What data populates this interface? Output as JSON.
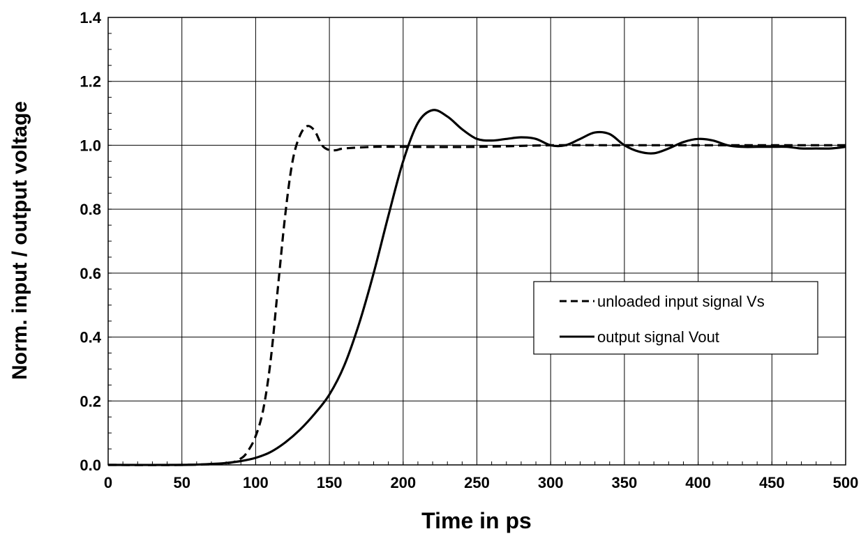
{
  "chart_data": {
    "type": "line",
    "xlabel": "Time in ps",
    "ylabel": "Norm. input / output voltage",
    "xlim": [
      0,
      500
    ],
    "ylim": [
      0,
      1.4
    ],
    "x_ticks": [
      0,
      50,
      100,
      150,
      200,
      250,
      300,
      350,
      400,
      450,
      500
    ],
    "y_ticks": [
      0.0,
      0.2,
      0.4,
      0.6,
      0.8,
      1.0,
      1.2,
      1.4
    ],
    "x_tick_labels": [
      "0",
      "50",
      "100",
      "150",
      "200",
      "250",
      "300",
      "350",
      "400",
      "450",
      "500"
    ],
    "y_tick_labels": [
      "0.0",
      "0.2",
      "0.4",
      "0.6",
      "0.8",
      "1.0",
      "1.2",
      "1.4"
    ],
    "grid": true,
    "legend_position": "right",
    "series": [
      {
        "name": "unloaded input signal Vs",
        "style": "dashed",
        "color": "#000000",
        "x": [
          0,
          50,
          80,
          90,
          95,
          100,
          105,
          110,
          115,
          120,
          125,
          130,
          135,
          140,
          145,
          150,
          155,
          160,
          180,
          200,
          250,
          300,
          350,
          400,
          450,
          500
        ],
        "y": [
          0.0,
          0.0,
          0.005,
          0.02,
          0.045,
          0.09,
          0.17,
          0.32,
          0.55,
          0.78,
          0.95,
          1.03,
          1.06,
          1.045,
          1.0,
          0.985,
          0.985,
          0.99,
          0.995,
          0.995,
          0.995,
          1.0,
          1.0,
          1.0,
          1.0,
          1.0
        ]
      },
      {
        "name": "output signal Vout",
        "style": "solid",
        "color": "#000000",
        "x": [
          0,
          50,
          70,
          80,
          90,
          100,
          110,
          120,
          130,
          140,
          150,
          160,
          170,
          180,
          190,
          200,
          210,
          220,
          230,
          240,
          250,
          260,
          270,
          280,
          290,
          300,
          310,
          320,
          330,
          340,
          350,
          360,
          370,
          380,
          390,
          400,
          410,
          420,
          430,
          440,
          450,
          460,
          470,
          480,
          490,
          500
        ],
        "y": [
          0.0,
          0.0,
          0.003,
          0.006,
          0.012,
          0.022,
          0.04,
          0.07,
          0.11,
          0.16,
          0.22,
          0.31,
          0.44,
          0.6,
          0.78,
          0.95,
          1.07,
          1.11,
          1.09,
          1.05,
          1.02,
          1.015,
          1.02,
          1.025,
          1.02,
          1.0,
          1.0,
          1.02,
          1.04,
          1.035,
          1.0,
          0.98,
          0.975,
          0.99,
          1.01,
          1.02,
          1.015,
          1.0,
          0.995,
          0.995,
          0.995,
          0.995,
          0.99,
          0.99,
          0.99,
          0.995
        ]
      }
    ]
  }
}
